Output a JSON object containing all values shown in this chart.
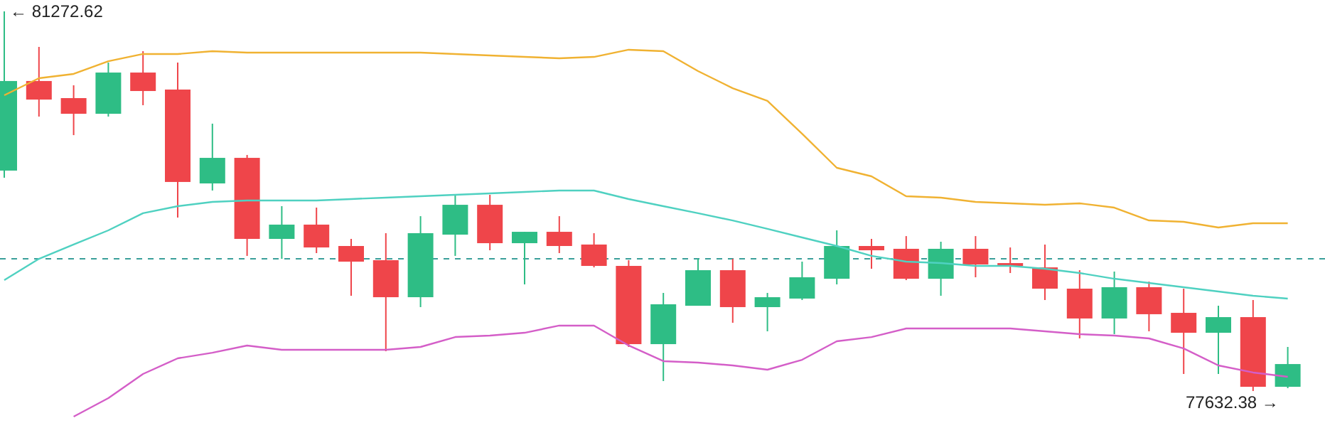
{
  "chart_data": {
    "type": "candlestick",
    "categories": [
      null,
      null,
      null,
      null,
      null,
      null,
      null,
      null,
      null,
      null,
      null,
      null,
      null,
      null,
      null,
      null,
      null,
      null,
      null,
      null,
      null,
      null,
      null,
      null,
      null,
      null,
      null,
      null,
      null,
      null,
      null,
      null,
      null,
      null,
      null,
      null,
      null,
      null
    ],
    "ohlc": [
      [
        79746,
        81272.62,
        79677,
        80605
      ],
      [
        80605,
        80932,
        80264,
        80427
      ],
      [
        80441,
        80564,
        80086,
        80291
      ],
      [
        80291,
        80782,
        80264,
        80686
      ],
      [
        80686,
        80891,
        80373,
        80509
      ],
      [
        80523,
        80782,
        79296,
        79637
      ],
      [
        79623,
        80196,
        79555,
        79868
      ],
      [
        79868,
        79896,
        78928,
        79091
      ],
      [
        79091,
        79405,
        78900,
        79228
      ],
      [
        79228,
        79391,
        78955,
        79009
      ],
      [
        79023,
        79091,
        78546,
        78873
      ],
      [
        78887,
        79146,
        78014,
        78532
      ],
      [
        78532,
        79309,
        78437,
        79146
      ],
      [
        79132,
        79514,
        78928,
        79418
      ],
      [
        79418,
        79514,
        78982,
        79050
      ],
      [
        79050,
        79159,
        78655,
        79159
      ],
      [
        79159,
        79309,
        78955,
        79023
      ],
      [
        79037,
        79146,
        78818,
        78832
      ],
      [
        78832,
        78887,
        78055,
        78082
      ],
      [
        78082,
        78573,
        77728,
        78464
      ],
      [
        78450,
        78900,
        78450,
        78791
      ],
      [
        78791,
        78900,
        78287,
        78437
      ],
      [
        78437,
        78573,
        78205,
        78532
      ],
      [
        78519,
        78873,
        78505,
        78723
      ],
      [
        78709,
        79173,
        78655,
        79023
      ],
      [
        79023,
        79091,
        78805,
        78982
      ],
      [
        78996,
        79118,
        78696,
        78709
      ],
      [
        78709,
        79064,
        78546,
        78996
      ],
      [
        78996,
        79118,
        78723,
        78846
      ],
      [
        78859,
        79009,
        78764,
        78832
      ],
      [
        78818,
        79037,
        78505,
        78614
      ],
      [
        78614,
        78791,
        78137,
        78328
      ],
      [
        78328,
        78778,
        78178,
        78628
      ],
      [
        78628,
        78682,
        78205,
        78369
      ],
      [
        78382,
        78614,
        77796,
        78191
      ],
      [
        78191,
        78450,
        77796,
        78341
      ],
      [
        78341,
        78505,
        77632.38,
        77673
      ],
      [
        77673,
        78055,
        77660,
        77891
      ]
    ],
    "colors": [
      "#2ebd85",
      "#ef454a",
      "#ef454a",
      "#2ebd85",
      "#ef454a",
      "#ef454a",
      "#2ebd85",
      "#ef454a",
      "#2ebd85",
      "#ef454a",
      "#ef454a",
      "#ef454a",
      "#2ebd85",
      "#2ebd85",
      "#ef454a",
      "#2ebd85",
      "#ef454a",
      "#ef454a",
      "#ef454a",
      "#2ebd85",
      "#2ebd85",
      "#ef454a",
      "#2ebd85",
      "#2ebd85",
      "#2ebd85",
      "#ef454a",
      "#ef454a",
      "#2ebd85",
      "#ef454a",
      "#ef454a",
      "#ef454a",
      "#ef454a",
      "#2ebd85",
      "#ef454a",
      "#ef454a",
      "#2ebd85",
      "#ef454a",
      "#2ebd85"
    ],
    "series": [
      {
        "type": "line",
        "color": "#f0b232",
        "values": [
          80468,
          80632,
          80673,
          80795,
          80864,
          80864,
          80891,
          80877,
          80877,
          80877,
          80877,
          80877,
          80877,
          80864,
          80850,
          80836,
          80823,
          80836,
          80905,
          80891,
          80700,
          80536,
          80414,
          80100,
          79773,
          79691,
          79500,
          79487,
          79446,
          79432,
          79418,
          79432,
          79391,
          79268,
          79255,
          79200,
          79241,
          79241
        ]
      },
      {
        "type": "line",
        "color": "#4fd1c1",
        "values": [
          78696,
          78900,
          79037,
          79173,
          79337,
          79405,
          79446,
          79459,
          79459,
          79459,
          79473,
          79487,
          79500,
          79514,
          79527,
          79541,
          79555,
          79555,
          79473,
          79405,
          79337,
          79268,
          79187,
          79105,
          79023,
          78928,
          78873,
          78859,
          78832,
          78832,
          78805,
          78764,
          78709,
          78669,
          78628,
          78587,
          78546,
          78519
        ]
      },
      {
        "type": "line",
        "color": "#d45ec8",
        "values": [
          null,
          null,
          77387,
          77564,
          77796,
          77946,
          78000,
          78069,
          78028,
          78028,
          78028,
          78028,
          78055,
          78150,
          78164,
          78191,
          78260,
          78260,
          78069,
          77919,
          77905,
          77878,
          77837,
          77932,
          78110,
          78150,
          78232,
          78232,
          78232,
          78232,
          78205,
          78178,
          78164,
          78137,
          78041,
          77878,
          77810,
          77769
        ]
      }
    ],
    "ref_lines": [
      {
        "axis": "y",
        "value": 78900,
        "color": "#3a9f9a",
        "line_style": "dashed"
      }
    ],
    "annotations": [
      "← 81272.62",
      "77632.38 →"
    ]
  }
}
